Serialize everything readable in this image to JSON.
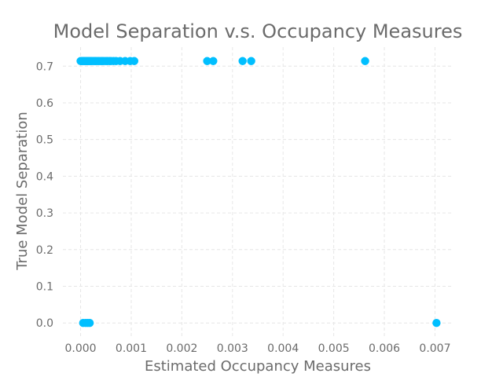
{
  "chart_data": {
    "type": "scatter",
    "title": "Model Separation v.s. Occupancy Measures",
    "xlabel": "Estimated Occupancy Measures",
    "ylabel": "True Model Separation",
    "xlim": [
      -0.00035,
      0.00735
    ],
    "ylim": [
      -0.036,
      0.752
    ],
    "x_ticks": [
      0.0,
      0.001,
      0.002,
      0.003,
      0.004,
      0.005,
      0.006,
      0.007
    ],
    "x_tick_labels": [
      "0.000",
      "0.001",
      "0.002",
      "0.003",
      "0.004",
      "0.005",
      "0.006",
      "0.007"
    ],
    "y_ticks": [
      0.0,
      0.1,
      0.2,
      0.3,
      0.4,
      0.5,
      0.6,
      0.7
    ],
    "y_tick_labels": [
      "0.0",
      "0.1",
      "0.2",
      "0.3",
      "0.4",
      "0.5",
      "0.6",
      "0.7"
    ],
    "grid": true,
    "colors": {
      "marker": "#00bfff",
      "grid": "#e6e6e6",
      "text": "#6b6b6b"
    },
    "series": [
      {
        "name": "points",
        "x": [
          0.0,
          2e-05,
          4e-05,
          6e-05,
          8e-05,
          0.0001,
          0.00012,
          0.00014,
          0.00016,
          0.00018,
          0.0002,
          0.00022,
          0.00025,
          0.00028,
          0.0003,
          0.00033,
          0.00036,
          0.0004,
          0.00043,
          0.00046,
          0.0005,
          0.00053,
          0.00057,
          0.0006,
          0.00065,
          0.0007,
          0.00078,
          0.00088,
          0.00098,
          0.00106,
          0.0025,
          0.00262,
          0.0032,
          0.00337,
          0.00562,
          5e-05,
          0.0001,
          0.00014,
          0.00018,
          0.00703
        ],
        "y": [
          0.714,
          0.714,
          0.714,
          0.714,
          0.714,
          0.714,
          0.714,
          0.714,
          0.714,
          0.714,
          0.714,
          0.714,
          0.714,
          0.714,
          0.714,
          0.714,
          0.714,
          0.714,
          0.714,
          0.714,
          0.714,
          0.714,
          0.714,
          0.714,
          0.714,
          0.714,
          0.714,
          0.714,
          0.714,
          0.714,
          0.714,
          0.714,
          0.714,
          0.714,
          0.714,
          0.0,
          0.0,
          0.0,
          0.0,
          0.0
        ]
      }
    ]
  }
}
